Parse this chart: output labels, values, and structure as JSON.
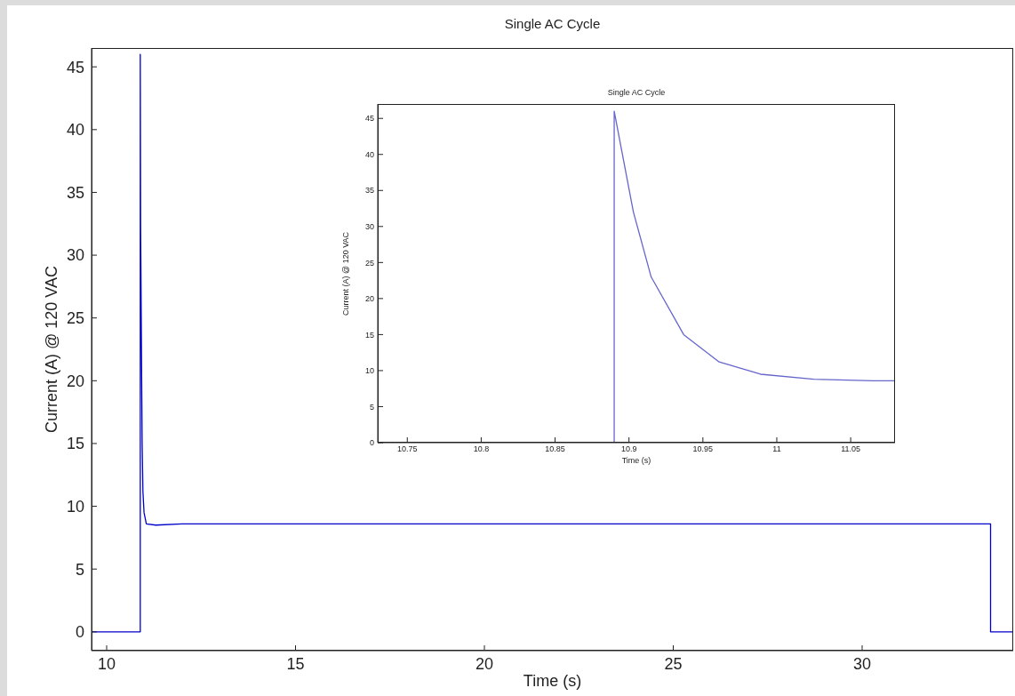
{
  "chart_data": [
    {
      "type": "line",
      "title": "Single AC Cycle",
      "xlabel": "Time (s)",
      "ylabel": "Current (A) @ 120 VAC",
      "xlim": [
        9.6,
        34
      ],
      "ylim": [
        -1.5,
        46.5
      ],
      "xticks": [
        10,
        15,
        20,
        25,
        30
      ],
      "yticks": [
        0,
        5,
        10,
        15,
        20,
        25,
        30,
        35,
        40,
        45
      ],
      "x": [
        9.6,
        10.89,
        10.89,
        10.9,
        10.92,
        10.94,
        10.96,
        10.99,
        11.05,
        11.3,
        12,
        33.4,
        33.4,
        34
      ],
      "series": [
        {
          "color": "#0000cc",
          "values": [
            0,
            0,
            46,
            32,
            23,
            15,
            11.2,
            9.5,
            8.6,
            8.5,
            8.6,
            8.6,
            0,
            0
          ]
        }
      ]
    },
    {
      "type": "line",
      "title": "Single AC Cycle",
      "xlabel": "Time (s)",
      "ylabel": "Current (A) @ 120 VAC",
      "xlim": [
        10.73,
        11.08
      ],
      "ylim": [
        0,
        47
      ],
      "xticks": [
        10.75,
        10.8,
        10.85,
        10.9,
        10.95,
        11,
        11.05
      ],
      "yticks": [
        0,
        5,
        10,
        15,
        20,
        25,
        30,
        35,
        40,
        45
      ],
      "x": [
        10.89,
        10.89,
        10.903,
        10.915,
        10.937,
        10.961,
        10.989,
        11.025,
        11.065,
        11.08
      ],
      "series": [
        {
          "color": "#6666cc",
          "values": [
            0,
            46,
            32,
            23,
            15,
            11.2,
            9.5,
            8.8,
            8.6,
            8.6
          ]
        }
      ]
    }
  ]
}
